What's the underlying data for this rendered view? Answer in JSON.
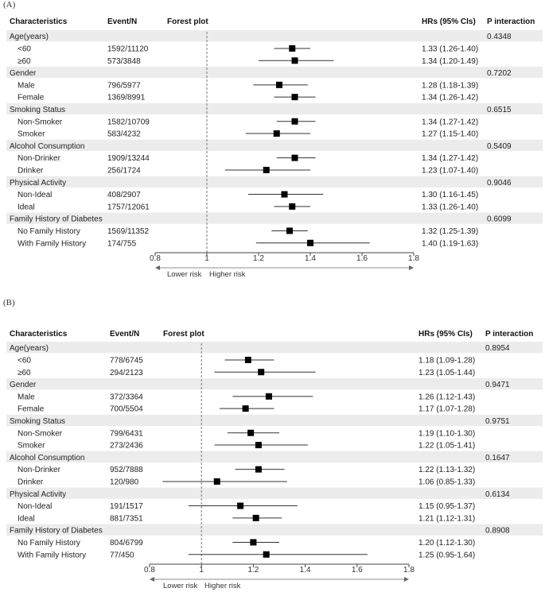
{
  "panels": [
    {
      "label": "(A)",
      "headers": {
        "characteristics": "Characteristics",
        "event": "Event/N",
        "plot": "Forest plot",
        "hr": "HRs (95% CIs)",
        "p": "P interaction"
      },
      "axis_note": {
        "lower": "Lower risk",
        "higher": "Higher risk"
      }
    },
    {
      "label": "(B)",
      "headers": {
        "characteristics": "Characteristics",
        "event": "Event/N",
        "plot": "Forest plot",
        "hr": "HRs (95% CIs)",
        "p": "P interaction"
      },
      "axis_note": {
        "lower": "Lower risk",
        "higher": "Higher risk"
      }
    }
  ],
  "chart_data": [
    {
      "type": "forest",
      "title": "",
      "xlim": [
        0.8,
        1.8
      ],
      "ticks": [
        0.8,
        1,
        1.2,
        1.4,
        1.6,
        1.8
      ],
      "tick_labels": [
        "0.8",
        "1",
        "1.2",
        "1.4",
        "1.6",
        "1.8"
      ],
      "reference_line": 1,
      "rows": [
        {
          "kind": "group",
          "label": "Age(years)",
          "p": "0.4348"
        },
        {
          "kind": "item",
          "label": "<60",
          "event": "1592/11120",
          "hr": 1.33,
          "lo": 1.26,
          "hi": 1.4,
          "hr_text": "1.33 (1.26-1.40)"
        },
        {
          "kind": "item",
          "label": "≥60",
          "event": "573/3848",
          "hr": 1.34,
          "lo": 1.2,
          "hi": 1.49,
          "hr_text": "1.34 (1.20-1.49)"
        },
        {
          "kind": "group",
          "label": "Gender",
          "p": "0.7202"
        },
        {
          "kind": "item",
          "label": "Male",
          "event": "796/5977",
          "hr": 1.28,
          "lo": 1.18,
          "hi": 1.39,
          "hr_text": "1.28 (1.18-1.39)"
        },
        {
          "kind": "item",
          "label": "Female",
          "event": "1369/8991",
          "hr": 1.34,
          "lo": 1.26,
          "hi": 1.42,
          "hr_text": "1.34 (1.26-1.42)"
        },
        {
          "kind": "group",
          "label": "Smoking Status",
          "p": "0.6515"
        },
        {
          "kind": "item",
          "label": "Non-Smoker",
          "event": "1582/10709",
          "hr": 1.34,
          "lo": 1.27,
          "hi": 1.42,
          "hr_text": "1.34 (1.27-1.42)"
        },
        {
          "kind": "item",
          "label": "Smoker",
          "event": "583/4232",
          "hr": 1.27,
          "lo": 1.15,
          "hi": 1.4,
          "hr_text": "1.27 (1.15-1.40)"
        },
        {
          "kind": "group",
          "label": "Alcohol Consumption",
          "p": "0.5409"
        },
        {
          "kind": "item",
          "label": "Non-Drinker",
          "event": "1909/13244",
          "hr": 1.34,
          "lo": 1.27,
          "hi": 1.42,
          "hr_text": "1.34 (1.27-1.42)"
        },
        {
          "kind": "item",
          "label": "Drinker",
          "event": "256/1724",
          "hr": 1.23,
          "lo": 1.07,
          "hi": 1.4,
          "hr_text": "1.23 (1.07-1.40)"
        },
        {
          "kind": "group",
          "label": "Physical Activity",
          "p": "0.9046"
        },
        {
          "kind": "item",
          "label": "Non-Ideal",
          "event": "408/2907",
          "hr": 1.3,
          "lo": 1.16,
          "hi": 1.45,
          "hr_text": "1.30 (1.16-1.45)"
        },
        {
          "kind": "item",
          "label": "Ideal",
          "event": "1757/12061",
          "hr": 1.33,
          "lo": 1.26,
          "hi": 1.4,
          "hr_text": "1.33 (1.26-1.40)"
        },
        {
          "kind": "group",
          "label": "Family History of Diabetes",
          "p": "0.6099"
        },
        {
          "kind": "item",
          "label": "No Family History",
          "event": "1569/11352",
          "hr": 1.32,
          "lo": 1.25,
          "hi": 1.39,
          "hr_text": "1.32 (1.25-1.39)"
        },
        {
          "kind": "item",
          "label": "With Family History",
          "event": "174/755",
          "hr": 1.4,
          "lo": 1.19,
          "hi": 1.63,
          "hr_text": "1.40 (1.19-1.63)"
        }
      ]
    },
    {
      "type": "forest",
      "title": "",
      "xlim": [
        0.8,
        1.8
      ],
      "ticks": [
        0.8,
        1,
        1.2,
        1.4,
        1.6,
        1.8
      ],
      "tick_labels": [
        "0.8",
        "1",
        "1.2",
        "1.4",
        "1.6",
        "1.8"
      ],
      "reference_line": 1,
      "rows": [
        {
          "kind": "group",
          "label": "Age(years)",
          "p": "0.8954"
        },
        {
          "kind": "item",
          "label": "<60",
          "event": "778/6745",
          "hr": 1.18,
          "lo": 1.09,
          "hi": 1.28,
          "hr_text": "1.18 (1.09-1.28)"
        },
        {
          "kind": "item",
          "label": "≥60",
          "event": "294/2123",
          "hr": 1.23,
          "lo": 1.05,
          "hi": 1.44,
          "hr_text": "1.23 (1.05-1.44)"
        },
        {
          "kind": "group",
          "label": "Gender",
          "p": "0.9471"
        },
        {
          "kind": "item",
          "label": "Male",
          "event": "372/3364",
          "hr": 1.26,
          "lo": 1.12,
          "hi": 1.43,
          "hr_text": "1.26 (1.12-1.43)"
        },
        {
          "kind": "item",
          "label": "Female",
          "event": "700/5504",
          "hr": 1.17,
          "lo": 1.07,
          "hi": 1.28,
          "hr_text": "1.17 (1.07-1.28)"
        },
        {
          "kind": "group",
          "label": "Smoking Status",
          "p": "0.9751"
        },
        {
          "kind": "item",
          "label": "Non-Smoker",
          "event": "799/6431",
          "hr": 1.19,
          "lo": 1.1,
          "hi": 1.3,
          "hr_text": "1.19 (1.10-1.30)"
        },
        {
          "kind": "item",
          "label": "Smoker",
          "event": "273/2436",
          "hr": 1.22,
          "lo": 1.05,
          "hi": 1.41,
          "hr_text": "1.22 (1.05-1.41)"
        },
        {
          "kind": "group",
          "label": "Alcohol Consumption",
          "p": "0.1647"
        },
        {
          "kind": "item",
          "label": "Non-Drinker",
          "event": "952/7888",
          "hr": 1.22,
          "lo": 1.13,
          "hi": 1.32,
          "hr_text": "1.22 (1.13-1.32)"
        },
        {
          "kind": "item",
          "label": "Drinker",
          "event": "120/980",
          "hr": 1.06,
          "lo": 0.85,
          "hi": 1.33,
          "hr_text": "1.06 (0.85-1.33)"
        },
        {
          "kind": "group",
          "label": "Physical Activity",
          "p": "0.6134"
        },
        {
          "kind": "item",
          "label": "Non-Ideal",
          "event": "191/1517",
          "hr": 1.15,
          "lo": 0.95,
          "hi": 1.37,
          "hr_text": "1.15 (0.95-1.37)"
        },
        {
          "kind": "item",
          "label": "Ideal",
          "event": "881/7351",
          "hr": 1.21,
          "lo": 1.12,
          "hi": 1.31,
          "hr_text": "1.21 (1.12-1.31)"
        },
        {
          "kind": "group",
          "label": "Family History of Diabetes",
          "p": "0.8908"
        },
        {
          "kind": "item",
          "label": "No Family History",
          "event": "804/6799",
          "hr": 1.2,
          "lo": 1.12,
          "hi": 1.3,
          "hr_text": "1.20 (1.12-1.30)"
        },
        {
          "kind": "item",
          "label": "With Family History",
          "event": "77/450",
          "hr": 1.25,
          "lo": 0.95,
          "hi": 1.64,
          "hr_text": "1.25 (0.95-1.64)"
        }
      ]
    }
  ],
  "colors": {
    "shade": "#ececec",
    "marker": "#000000",
    "ci_line": "#333333",
    "ref_line": "#777777",
    "axis": "#444444"
  }
}
